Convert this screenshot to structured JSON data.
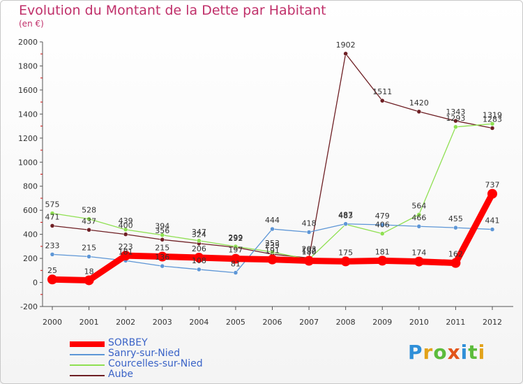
{
  "title": "Evolution du Montant de la Dette par Habitant",
  "subtitle": "(en €)",
  "brand": {
    "letters": [
      {
        "ch": "P",
        "color": "#2f8fd8"
      },
      {
        "ch": "r",
        "color": "#e2a21a"
      },
      {
        "ch": "o",
        "color": "#5cbc3c"
      },
      {
        "ch": "x",
        "color": "#e2541a"
      },
      {
        "ch": "i",
        "color": "#2f8fd8"
      },
      {
        "ch": "t",
        "color": "#5cbc3c"
      },
      {
        "ch": "i",
        "color": "#e2a21a"
      }
    ]
  },
  "chart_data": {
    "type": "line",
    "x": [
      "2000",
      "2001",
      "2002",
      "2003",
      "2004",
      "2005",
      "2006",
      "2007",
      "2008",
      "2009",
      "2010",
      "2011",
      "2012"
    ],
    "ylim": [
      -200,
      2000
    ],
    "yticks": [
      -200,
      0,
      200,
      400,
      600,
      800,
      1000,
      1200,
      1400,
      1600,
      1800,
      2000
    ],
    "grid": false,
    "legend_position": "bottom-left",
    "series": [
      {
        "name": "Aube",
        "color": "#6e1f24",
        "values": [
          471,
          437,
          400,
          356,
          324,
          292,
          235,
          203,
          1902,
          1511,
          1420,
          1343,
          1283
        ]
      },
      {
        "name": "Courcelles-sur-Nied",
        "color": "#8fe052",
        "values": [
          575,
          528,
          439,
          394,
          347,
          299,
          253,
          192,
          483,
          406,
          564,
          1293,
          1319
        ]
      },
      {
        "name": "Sanry-sur-Nied",
        "color": "#5d96d6",
        "values": [
          233,
          215,
          181,
          136,
          108,
          81,
          444,
          418,
          487,
          479,
          466,
          455,
          441
        ]
      },
      {
        "name": "SORBEY",
        "color": "#ff0000",
        "values": [
          25,
          18,
          223,
          215,
          206,
          197,
          191,
          180,
          175,
          181,
          174,
          162,
          737
        ]
      }
    ]
  }
}
